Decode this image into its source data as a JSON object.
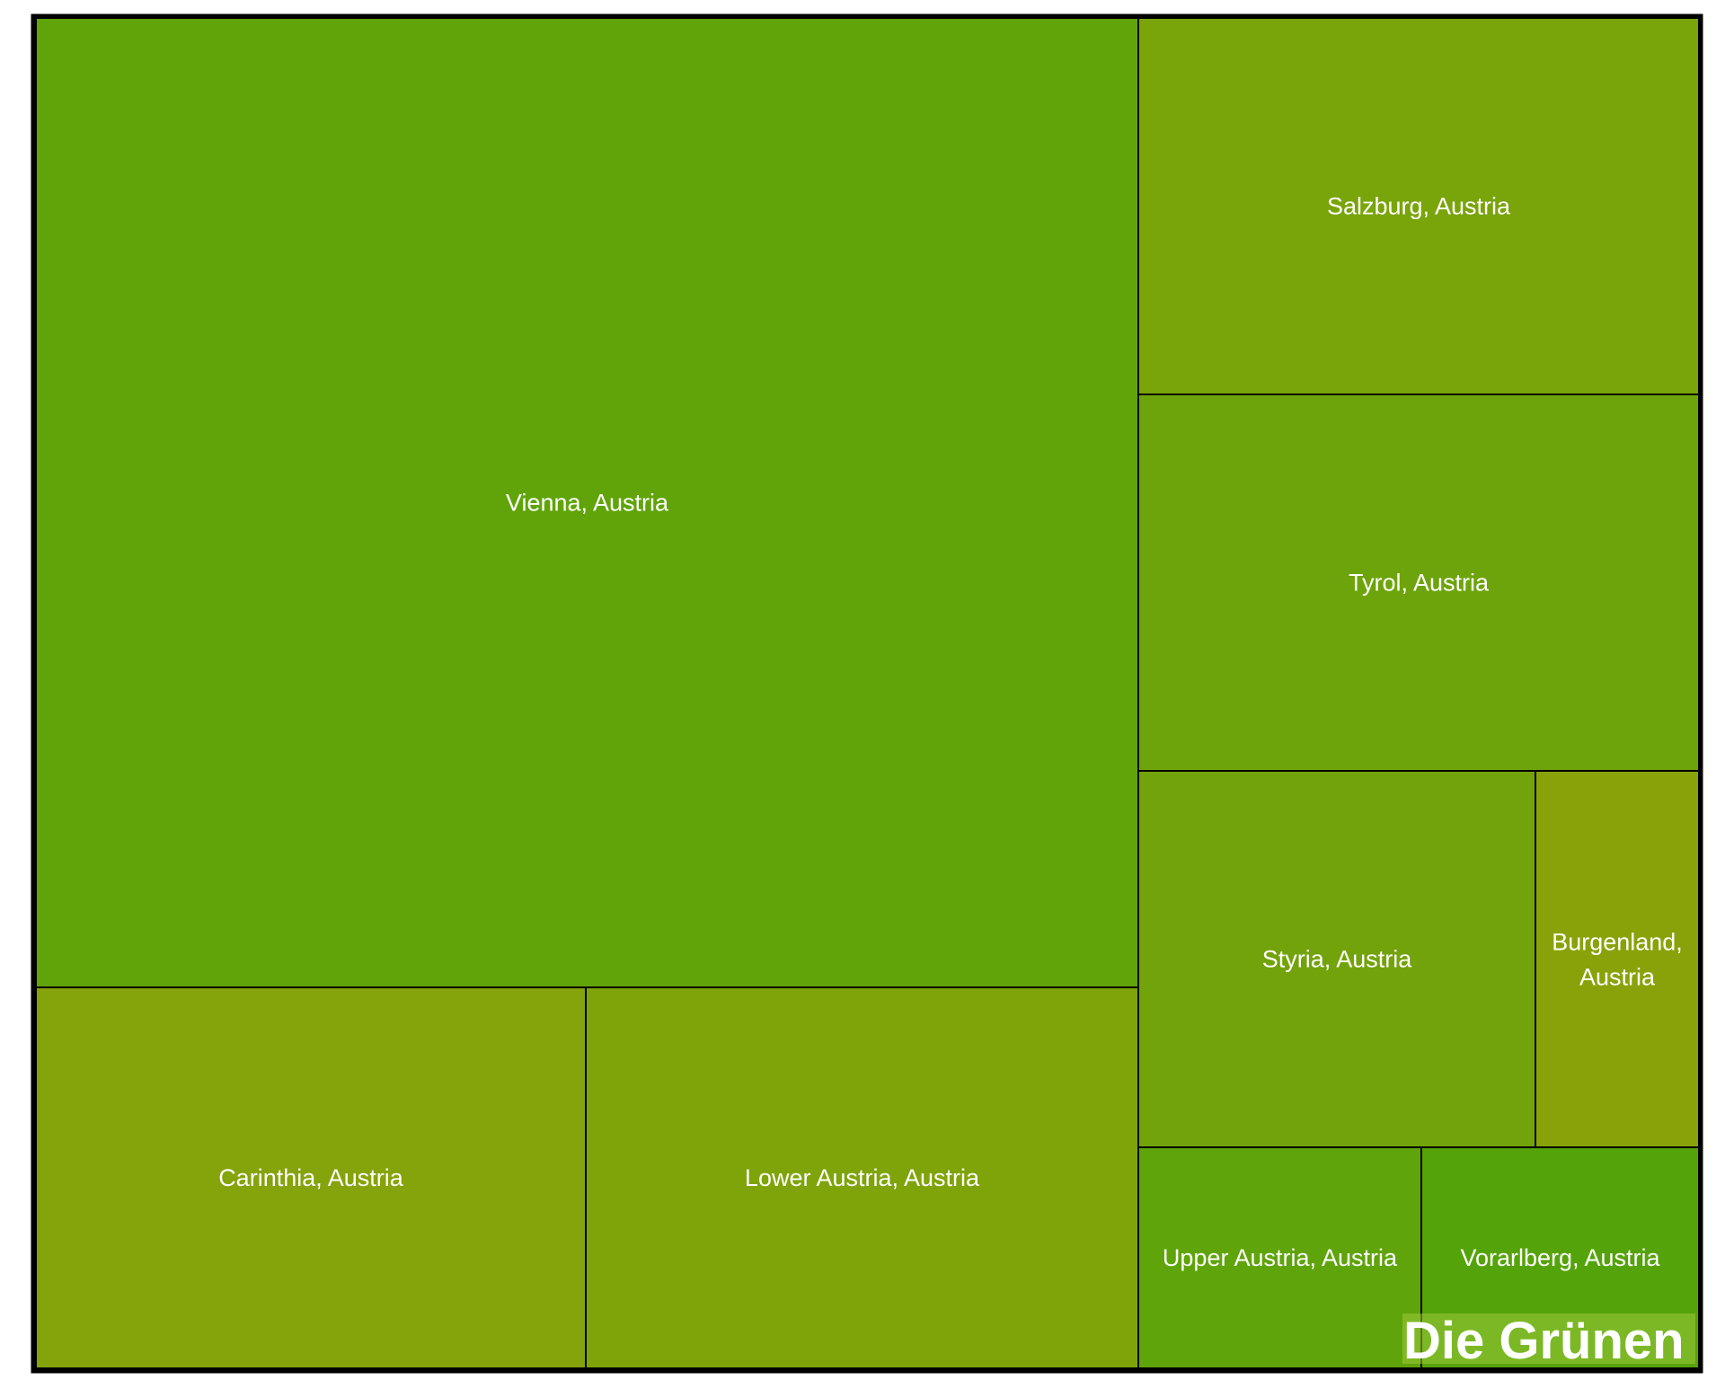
{
  "chart_data": {
    "type": "treemap",
    "cells": [
      {
        "label": "Vienna, Austria",
        "color": "#60a40a"
      },
      {
        "label": "Carinthia, Austria",
        "color": "#85a30b"
      },
      {
        "label": "Lower Austria, Austria",
        "color": "#7ea409"
      },
      {
        "label": "Salzburg, Austria",
        "color": "#79a40a"
      },
      {
        "label": "Tyrol, Austria",
        "color": "#6da40b"
      },
      {
        "label": "Styria, Austria",
        "color": "#73a30a"
      },
      {
        "label": "Burgenland, Austria",
        "color": "#8aa20a"
      },
      {
        "label": "Upper Austria, Austria",
        "color": "#5fa40a"
      },
      {
        "label": "Vorarlberg, Austria",
        "color": "#55a30a"
      }
    ]
  },
  "brand": {
    "text": "Die Grünen",
    "color": "#9ccb3c"
  }
}
